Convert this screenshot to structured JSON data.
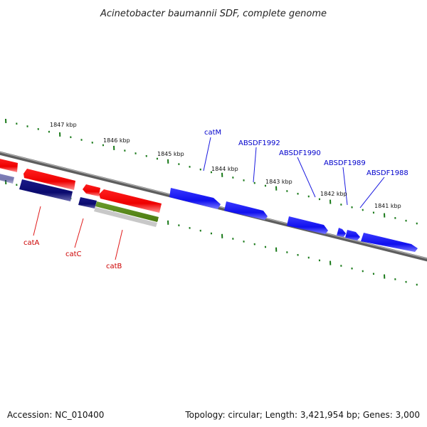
{
  "title": "Acinetobacter baumannii SDF, complete genome",
  "footer": {
    "accession": "Accession: NC_010400",
    "summary": "Topology: circular; Length: 3,421,954 bp; Genes: 3,000"
  },
  "colors": {
    "backbone": "#7a7a7a",
    "tick": "#1a7a1a",
    "forward_gene": "#1010ee",
    "reverse_gene_red": "#ee0000",
    "reverse_gene_navy": "#0a0a6e",
    "olive_gene": "#5a8a1a",
    "label_blue": "#0000cc",
    "label_red": "#cc0000"
  },
  "ticks": [
    {
      "label": "1847 kbp"
    },
    {
      "label": "1846 kbp"
    },
    {
      "label": "1845 kbp"
    },
    {
      "label": "1844 kbp"
    },
    {
      "label": "1843 kbp"
    },
    {
      "label": "1842 kbp"
    },
    {
      "label": "1841 kbp"
    }
  ],
  "genes_top": [
    {
      "label": "catM"
    },
    {
      "label": "ABSDF1992"
    },
    {
      "label": "ABSDF1990"
    },
    {
      "label": "ABSDF1989"
    },
    {
      "label": "ABSDF1988"
    }
  ],
  "genes_bottom": [
    {
      "label": "catA"
    },
    {
      "label": "catC"
    },
    {
      "label": "catB"
    }
  ]
}
